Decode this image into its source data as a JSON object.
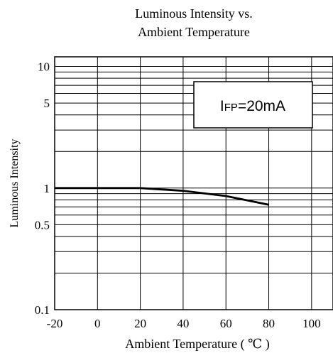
{
  "chart_data": {
    "type": "line",
    "title": [
      "Luminous Intensity vs.",
      "Ambient Temperature"
    ],
    "xlabel": "Ambient Temperature ( ℃ )",
    "ylabel": "Luminous Intensity",
    "xlim": [
      -20,
      110
    ],
    "ylim": [
      0.1,
      12
    ],
    "yscale": "log",
    "grid": true,
    "x_ticks": [
      -20,
      0,
      20,
      40,
      60,
      80,
      100
    ],
    "x_tick_labels": [
      "-20",
      "0",
      "20",
      "40",
      "60",
      "80",
      "100"
    ],
    "y_ticks": [
      0.1,
      0.5,
      1,
      5,
      10
    ],
    "y_tick_labels": [
      "0.1",
      "0.5",
      "1",
      "5",
      "10"
    ],
    "annotation": {
      "main": "I",
      "sub": "FP",
      "rest": "=20mA"
    },
    "series": [
      {
        "x": [
          -20,
          0,
          20,
          40,
          60,
          80
        ],
        "y": [
          1.0,
          1.0,
          1.0,
          0.95,
          0.86,
          0.73
        ]
      }
    ]
  }
}
